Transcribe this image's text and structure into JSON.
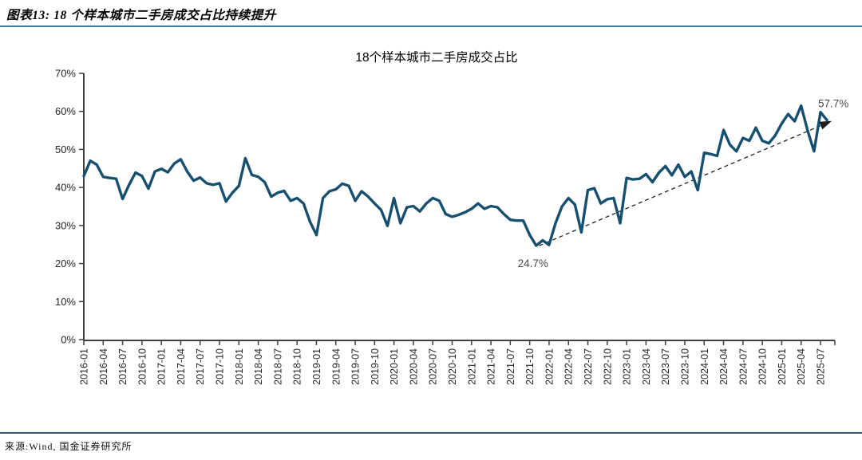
{
  "header": {
    "title": "图表13: 18 个样本城市二手房成交占比持续提升"
  },
  "source": {
    "text": "来源:Wind, 国金证券研究所"
  },
  "colors": {
    "line": "#17506F",
    "header_rule": "#46789E",
    "source_rule": "#2F5576",
    "axis": "#3F3F3F",
    "tick_label": "#262626",
    "annotation_label": "#4A4A4A",
    "trend_arrow": "#1F1F1F",
    "chart_title": "#000000"
  },
  "chart_data": {
    "type": "line",
    "title": "18个样本城市二手房成交占比",
    "unit": "%",
    "grid": false,
    "legend": "none",
    "ylim": [
      0,
      70
    ],
    "ytick_labels": [
      "0%",
      "10%",
      "20%",
      "30%",
      "40%",
      "50%",
      "60%",
      "70%"
    ],
    "x_start": "2016-01",
    "x_end": "2025-08",
    "frequency": "monthly",
    "xtick_every_months": 3,
    "xtick_labels": [
      "2016-01",
      "2016-04",
      "2016-07",
      "2016-10",
      "2017-01",
      "2017-04",
      "2017-07",
      "2017-10",
      "2018-01",
      "2018-04",
      "2018-07",
      "2018-10",
      "2019-01",
      "2019-04",
      "2019-07",
      "2019-10",
      "2020-01",
      "2020-04",
      "2020-07",
      "2020-10",
      "2021-01",
      "2021-04",
      "2021-07",
      "2021-10",
      "2022-01",
      "2022-04",
      "2022-07",
      "2022-10",
      "2023-01",
      "2023-04",
      "2023-07",
      "2023-10",
      "2024-01",
      "2024-04",
      "2024-07",
      "2024-10",
      "2025-01",
      "2025-04",
      "2025-07"
    ],
    "series": [
      {
        "name": "18个样本城市二手房成交占比",
        "values": [
          43.0,
          47.0,
          46.0,
          42.8,
          42.5,
          42.3,
          37.0,
          40.7,
          43.9,
          43.0,
          39.7,
          44.2,
          44.9,
          44.0,
          46.3,
          47.4,
          44.2,
          41.8,
          42.6,
          41.1,
          40.7,
          41.1,
          36.3,
          38.6,
          40.4,
          47.7,
          43.3,
          42.8,
          41.4,
          37.6,
          38.6,
          39.1,
          36.5,
          37.2,
          35.8,
          31.0,
          27.5,
          37.2,
          39.0,
          39.5,
          41.0,
          40.4,
          36.5,
          39.0,
          37.6,
          35.8,
          34.1,
          29.9,
          37.2,
          30.6,
          34.8,
          35.1,
          33.7,
          35.8,
          37.2,
          36.5,
          33.0,
          32.3,
          32.8,
          33.5,
          34.4,
          35.8,
          34.4,
          35.1,
          34.8,
          33.0,
          31.5,
          31.3,
          31.3,
          27.5,
          24.7,
          26.1,
          24.9,
          30.6,
          35.0,
          37.2,
          35.5,
          28.2,
          39.3,
          39.8,
          35.8,
          36.9,
          37.2,
          30.6,
          42.5,
          42.1,
          42.3,
          43.5,
          41.4,
          43.9,
          45.6,
          43.2,
          46.0,
          42.8,
          44.2,
          39.3,
          49.1,
          48.8,
          48.3,
          55.1,
          51.2,
          49.5,
          53.0,
          52.3,
          55.7,
          52.3,
          51.6,
          53.7,
          56.8,
          59.3,
          57.4,
          61.5,
          55.0,
          49.5,
          59.8,
          57.7
        ]
      }
    ],
    "annotations": [
      {
        "text": "24.7%",
        "month_index": 70,
        "value": 24.7,
        "placement": "below"
      },
      {
        "text": "57.7%",
        "month_index": 115,
        "value": 57.7,
        "placement": "above"
      }
    ],
    "trend_arrow": {
      "style": "dashed",
      "from_month_index": 70,
      "from_value": 24.7,
      "to_month_index": 115,
      "to_value": 57.7
    }
  }
}
